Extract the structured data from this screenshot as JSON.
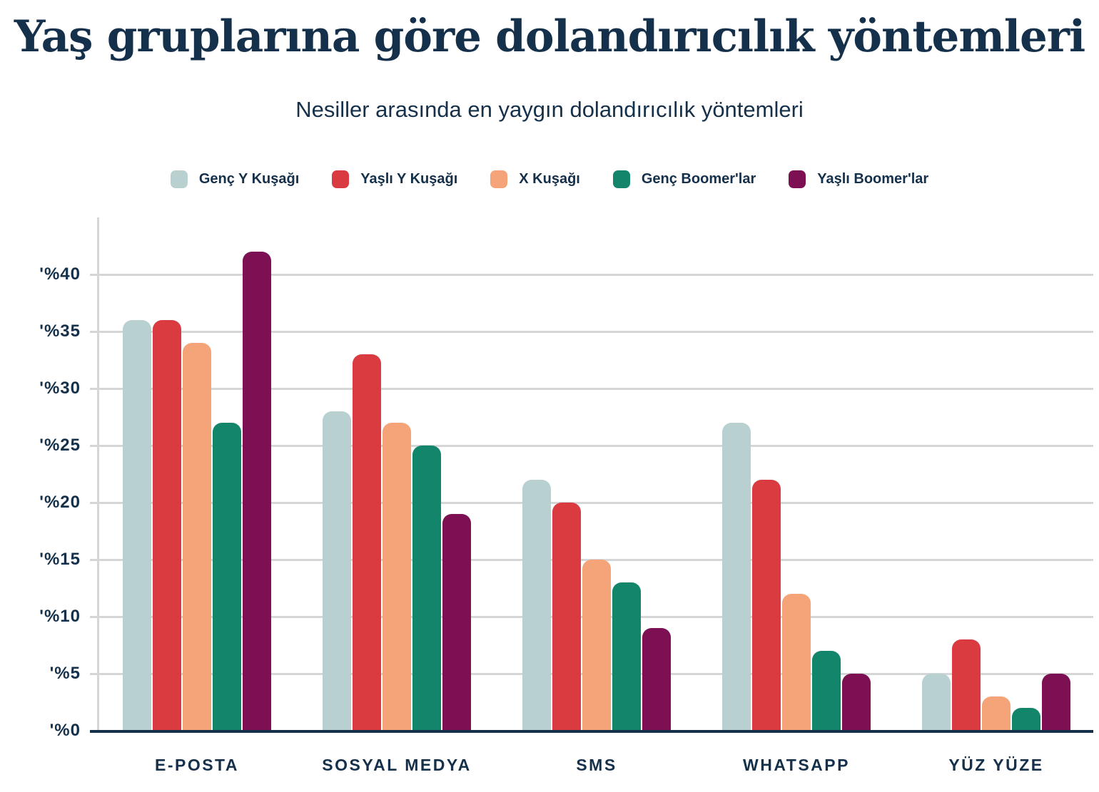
{
  "title": "Yaş gruplarına göre dolandırıcılık yöntemleri",
  "subtitle": "Nesiller arasında en yaygın dolandırıcılık yöntemleri",
  "colors": {
    "background": "#ffffff",
    "text_navy": "#15304a",
    "gridline": "#d5d7d7",
    "axis_baseline": "#15304a"
  },
  "chart_data": {
    "type": "bar",
    "title": "Yaş gruplarına göre dolandırıcılık yöntemleri",
    "subtitle": "Nesiller arasında en yaygın dolandırıcılık yöntemleri",
    "categories": [
      "E-POSTA",
      "SOSYAL MEDYA",
      "SMS",
      "WHATSAPP",
      "YÜZ YÜZE"
    ],
    "series": [
      {
        "name": "Genç Y Kuşağı",
        "color": "#b8d1d0",
        "values": [
          36,
          28,
          22,
          27,
          5
        ]
      },
      {
        "name": "Yaşlı Y Kuşağı",
        "color": "#d93b40",
        "values": [
          36,
          33,
          20,
          22,
          8
        ]
      },
      {
        "name": "X Kuşağı",
        "color": "#f5a378",
        "values": [
          34,
          27,
          15,
          12,
          3
        ]
      },
      {
        "name": "Genç Boomer'lar",
        "color": "#12856b",
        "values": [
          27,
          25,
          13,
          7,
          2
        ]
      },
      {
        "name": "Yaşlı Boomer'lar",
        "color": "#7d1053",
        "values": [
          42,
          19,
          9,
          5,
          5
        ]
      }
    ],
    "unit": "percent",
    "yticks": [
      0,
      5,
      10,
      15,
      20,
      25,
      30,
      35,
      40
    ],
    "ytick_labels": [
      "'%0",
      "'%5",
      "'%10",
      "'%15",
      "'%20",
      "'%25",
      "'%30",
      "'%35",
      "'%40"
    ],
    "ylim": [
      0,
      45
    ],
    "grid": true,
    "legend_position": "top"
  }
}
